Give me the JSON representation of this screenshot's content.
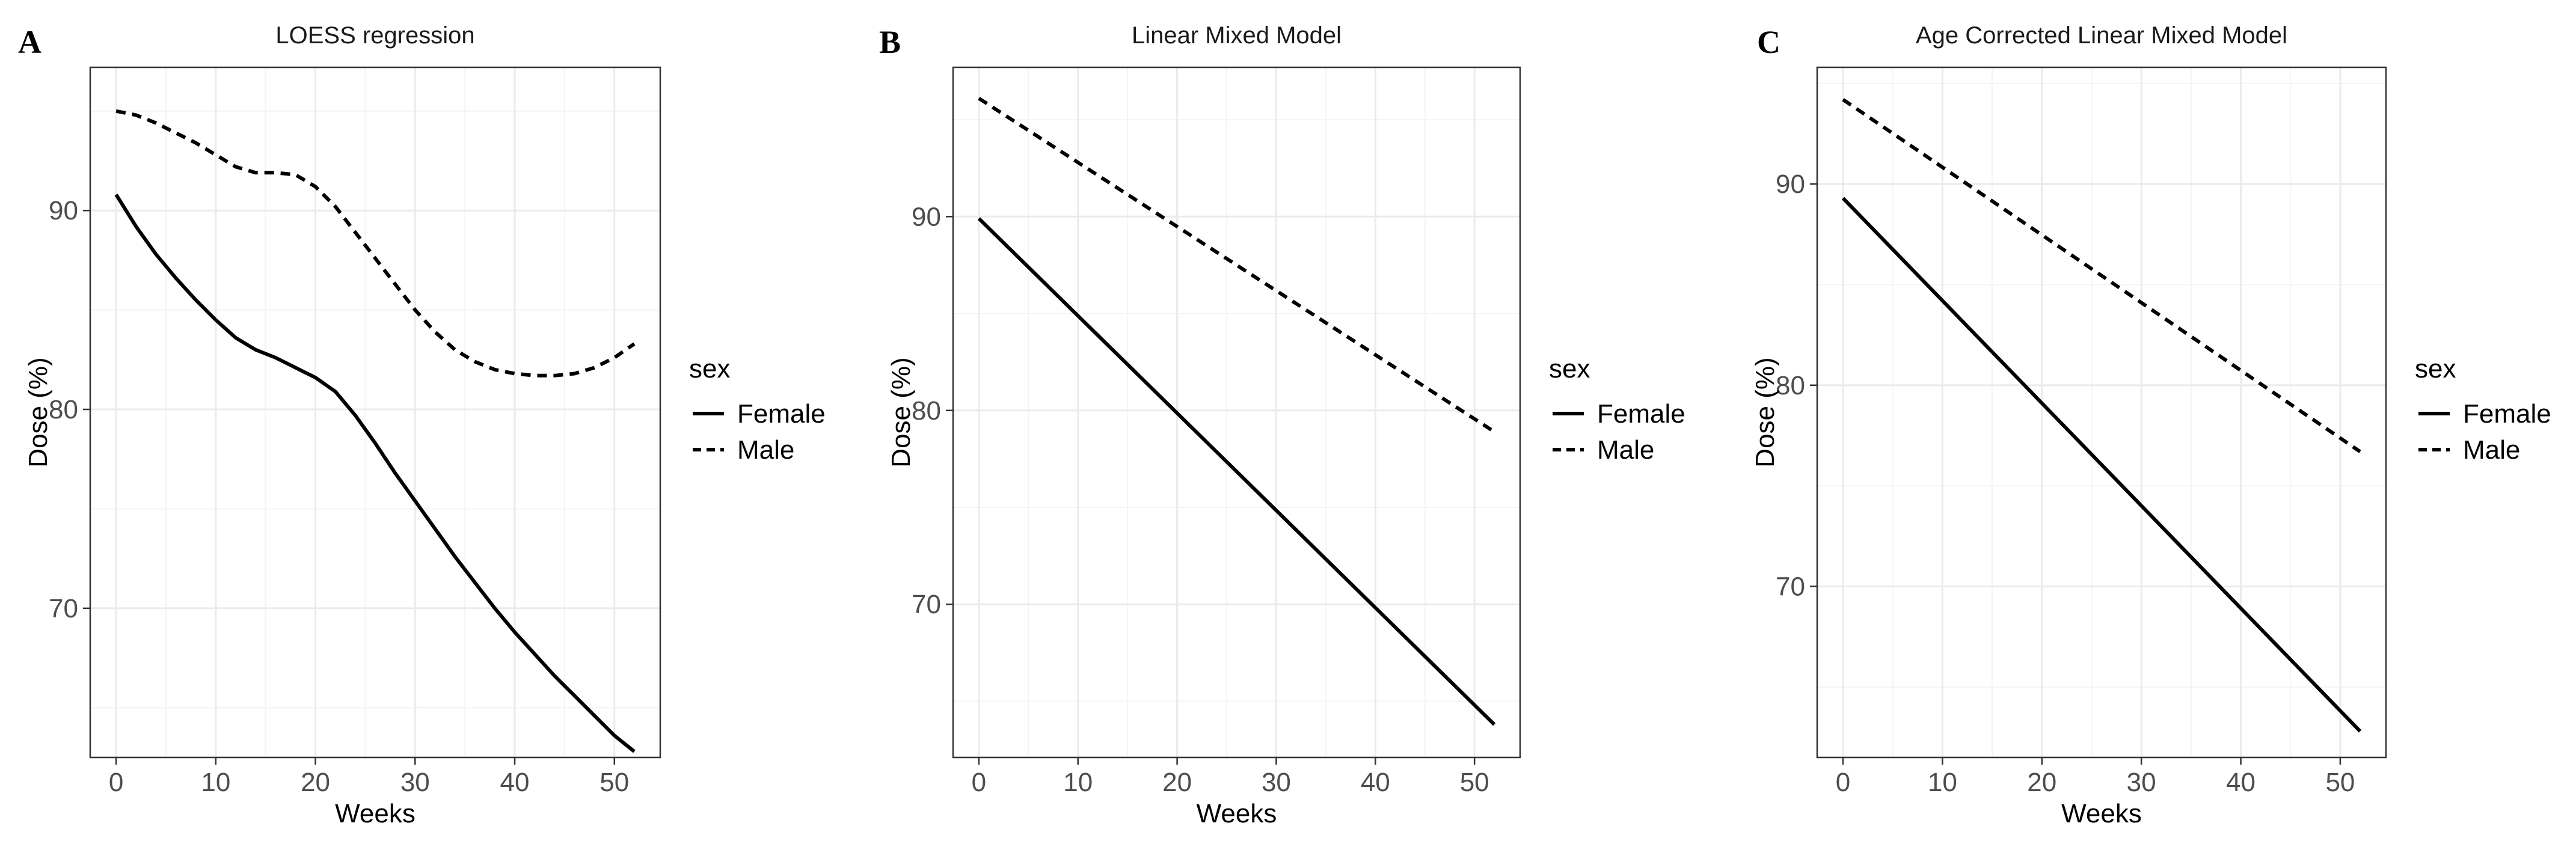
{
  "chart_data": [
    {
      "panel_label": "A",
      "type": "line",
      "title": "LOESS regression",
      "xlabel": "Weeks",
      "ylabel": "Dose (%)",
      "xlim": [
        -2.6,
        54.6
      ],
      "ylim": [
        62.5,
        97.2
      ],
      "x_ticks": [
        0,
        10,
        20,
        30,
        40,
        50
      ],
      "y_ticks": [
        70,
        80,
        90
      ],
      "grid": true,
      "legend": {
        "title": "sex",
        "position": "right",
        "entries": [
          "Female",
          "Male"
        ]
      },
      "series": [
        {
          "name": "Female",
          "linetype": "solid",
          "x": [
            0,
            2,
            4,
            6,
            8,
            10,
            12,
            14,
            16,
            18,
            20,
            22,
            24,
            26,
            28,
            30,
            32,
            34,
            36,
            38,
            40,
            42,
            44,
            46,
            48,
            50,
            52
          ],
          "y": [
            90.8,
            89.2,
            87.8,
            86.6,
            85.5,
            84.5,
            83.6,
            83.0,
            82.6,
            82.1,
            81.6,
            80.9,
            79.7,
            78.3,
            76.8,
            75.4,
            74.0,
            72.6,
            71.3,
            70.0,
            68.8,
            67.7,
            66.6,
            65.6,
            64.6,
            63.6,
            62.8
          ]
        },
        {
          "name": "Male",
          "linetype": "dashed",
          "x": [
            0,
            2,
            4,
            6,
            8,
            10,
            12,
            14,
            16,
            18,
            20,
            22,
            24,
            26,
            28,
            30,
            32,
            34,
            36,
            38,
            40,
            42,
            44,
            46,
            48,
            50,
            52
          ],
          "y": [
            95.0,
            94.8,
            94.4,
            93.9,
            93.4,
            92.8,
            92.2,
            91.9,
            91.9,
            91.8,
            91.2,
            90.2,
            88.9,
            87.6,
            86.3,
            85.0,
            83.9,
            83.0,
            82.4,
            82.0,
            81.8,
            81.7,
            81.7,
            81.8,
            82.1,
            82.6,
            83.3
          ]
        }
      ]
    },
    {
      "panel_label": "B",
      "type": "line",
      "title": "Linear Mixed Model",
      "xlabel": "Weeks",
      "ylabel": "Dose (%)",
      "xlim": [
        -2.6,
        54.6
      ],
      "ylim": [
        62.1,
        97.7
      ],
      "x_ticks": [
        0,
        10,
        20,
        30,
        40,
        50
      ],
      "y_ticks": [
        70,
        80,
        90
      ],
      "grid": true,
      "legend": {
        "title": "sex",
        "position": "right",
        "entries": [
          "Female",
          "Male"
        ]
      },
      "series": [
        {
          "name": "Female",
          "linetype": "solid",
          "x": [
            0,
            52
          ],
          "y": [
            89.9,
            63.8
          ]
        },
        {
          "name": "Male",
          "linetype": "dashed",
          "x": [
            0,
            52
          ],
          "y": [
            96.1,
            78.9
          ]
        }
      ]
    },
    {
      "panel_label": "C",
      "type": "line",
      "title": "Age Corrected Linear Mixed Model",
      "xlabel": "Weeks",
      "ylabel": "Dose (%)",
      "xlim": [
        -2.6,
        54.6
      ],
      "ylim": [
        61.5,
        95.8
      ],
      "x_ticks": [
        0,
        10,
        20,
        30,
        40,
        50
      ],
      "y_ticks": [
        70,
        80,
        90
      ],
      "grid": true,
      "legend": {
        "title": "sex",
        "position": "right",
        "entries": [
          "Female",
          "Male"
        ]
      },
      "series": [
        {
          "name": "Female",
          "linetype": "solid",
          "x": [
            0,
            52
          ],
          "y": [
            89.3,
            62.8
          ]
        },
        {
          "name": "Male",
          "linetype": "dashed",
          "x": [
            0,
            52
          ],
          "y": [
            94.2,
            76.7
          ]
        }
      ]
    }
  ]
}
